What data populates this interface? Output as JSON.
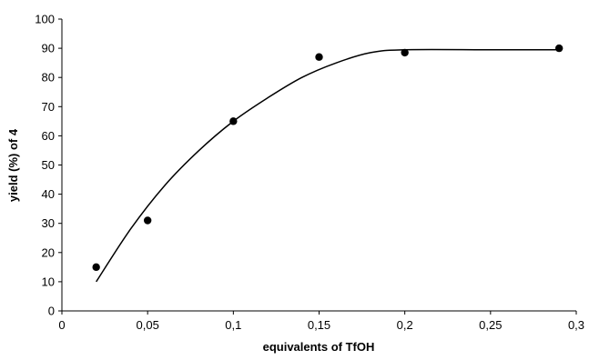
{
  "chart_data": {
    "type": "scatter",
    "xlabel": "equivalents of TfOH",
    "ylabel": "yield (%) of 4",
    "xlim": [
      0,
      0.3
    ],
    "ylim": [
      0,
      100
    ],
    "x_ticks": [
      0,
      0.05,
      0.1,
      0.15,
      0.2,
      0.25,
      0.3
    ],
    "x_tick_labels": [
      "0",
      "0,05",
      "0,1",
      "0,15",
      "0,2",
      "0,25",
      "0,3"
    ],
    "y_ticks": [
      0,
      10,
      20,
      30,
      40,
      50,
      60,
      70,
      80,
      90,
      100
    ],
    "y_tick_labels": [
      "0",
      "10",
      "20",
      "30",
      "40",
      "50",
      "60",
      "70",
      "80",
      "90",
      "100"
    ],
    "grid": false,
    "legend": false,
    "series": [
      {
        "kind": "points",
        "x": [
          0.02,
          0.05,
          0.1,
          0.15,
          0.2,
          0.29
        ],
        "y": [
          15,
          31,
          65,
          87,
          88.5,
          90
        ]
      },
      {
        "kind": "trendline",
        "x": [
          0.02,
          0.04,
          0.06,
          0.08,
          0.1,
          0.12,
          0.14,
          0.16,
          0.18,
          0.2,
          0.25,
          0.29
        ],
        "y": [
          10,
          28,
          43,
          55,
          65,
          73,
          80,
          85,
          88.5,
          89.5,
          89.5,
          89.5
        ]
      }
    ],
    "colors": {
      "axis": "#000000",
      "marker": "#000000",
      "line": "#000000"
    }
  }
}
